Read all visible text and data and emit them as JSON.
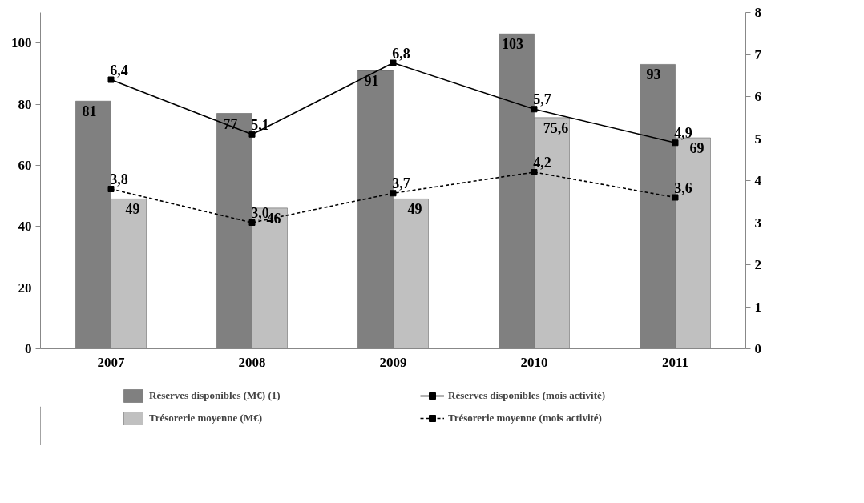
{
  "chart_data": {
    "type": "bar",
    "categories": [
      "2007",
      "2008",
      "2009",
      "2010",
      "2011"
    ],
    "ylim": [
      0,
      110
    ],
    "yticks": [
      0,
      20,
      40,
      60,
      80,
      100
    ],
    "y2lim": [
      0,
      8
    ],
    "y2ticks": [
      0,
      1,
      2,
      3,
      4,
      5,
      6,
      7,
      8
    ],
    "grid": false,
    "legend": "bottom",
    "series": [
      {
        "name": "Réserves disponibles (M€) (1)",
        "color": "#808080",
        "values": [
          81,
          77,
          91,
          103,
          93
        ],
        "value_labels": [
          "81",
          "77",
          "91",
          "103",
          "93"
        ]
      },
      {
        "name": "Trésorerie moyenne (M€)",
        "color": "#c0c0c0",
        "values": [
          49,
          46,
          49,
          75.6,
          69
        ],
        "value_labels": [
          "49",
          "46",
          "49",
          "75,6",
          "69"
        ]
      },
      {
        "name": "Réserves disponibles (mois activité)",
        "type": "line",
        "axis": "y2",
        "color": "#000000",
        "marker": "square",
        "line_style": "solid",
        "values": [
          6.4,
          5.1,
          6.8,
          5.7,
          4.9
        ],
        "value_labels": [
          "6,4",
          "5,1",
          "6,8",
          "5,7",
          "4,9"
        ]
      },
      {
        "name": "Trésorerie moyenne (mois activité)",
        "type": "line",
        "axis": "y2",
        "color": "#000000",
        "marker": "square",
        "line_style": "dashed",
        "values": [
          3.8,
          3.0,
          3.7,
          4.2,
          3.6
        ],
        "value_labels": [
          "3,8",
          "3,0",
          "3,7",
          "4,2",
          "3,6"
        ]
      }
    ]
  }
}
